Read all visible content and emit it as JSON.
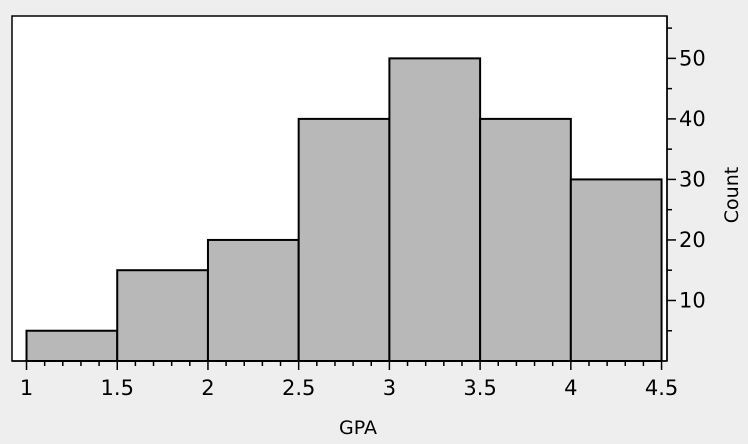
{
  "chart_data": {
    "type": "bar",
    "title": "",
    "xlabel": "GPA",
    "ylabel": "Count",
    "bins": [
      {
        "start": 1.0,
        "end": 1.5,
        "count": 5
      },
      {
        "start": 1.5,
        "end": 2.0,
        "count": 15
      },
      {
        "start": 2.0,
        "end": 2.5,
        "count": 20
      },
      {
        "start": 2.5,
        "end": 3.0,
        "count": 40
      },
      {
        "start": 3.0,
        "end": 3.5,
        "count": 50
      },
      {
        "start": 3.5,
        "end": 4.0,
        "count": 40
      },
      {
        "start": 4.0,
        "end": 4.5,
        "count": 30
      }
    ],
    "xlim": [
      0.92,
      4.53
    ],
    "ylim": [
      0,
      57
    ],
    "x_ticks": [
      "1",
      "1.5",
      "2",
      "2.5",
      "3",
      "3.5",
      "4",
      "4.5"
    ],
    "x_tick_values": [
      1,
      1.5,
      2,
      2.5,
      3,
      3.5,
      4,
      4.5
    ],
    "y_ticks": [
      "10",
      "20",
      "30",
      "40",
      "50"
    ],
    "y_tick_values": [
      10,
      20,
      30,
      40,
      50
    ],
    "y_axis_side": "right",
    "grid": false,
    "bar_color": "#b8b8b8",
    "bar_edge_color": "#000000",
    "plot_background": "#ffffff",
    "page_background": "#eeeeee"
  }
}
